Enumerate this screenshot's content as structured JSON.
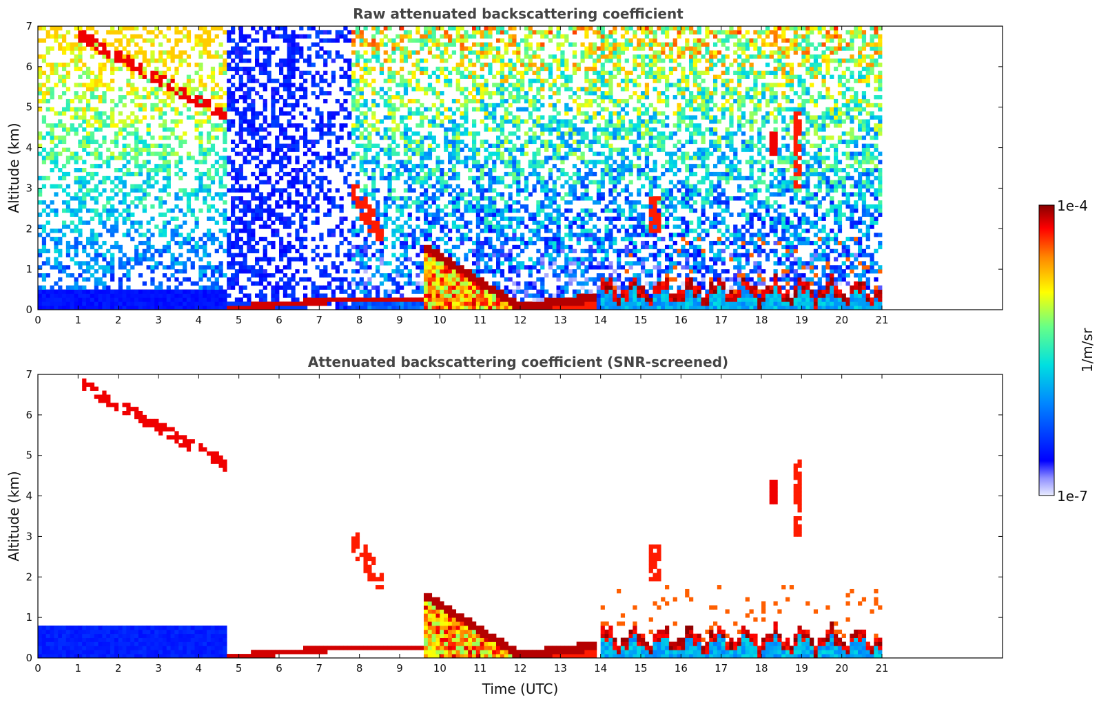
{
  "chart_data": [
    {
      "type": "heatmap",
      "title": "Raw attenuated backscattering coefficient",
      "xlabel": "",
      "ylabel": "Altitude (km)",
      "xlim": [
        0,
        24
      ],
      "ylim": [
        0,
        7
      ],
      "data_extent_hours": [
        0,
        21
      ],
      "xticks": [
        "0",
        "1",
        "2",
        "3",
        "4",
        "5",
        "6",
        "7",
        "8",
        "9",
        "10",
        "11",
        "12",
        "13",
        "14",
        "15",
        "16",
        "17",
        "18",
        "19",
        "20",
        "21"
      ],
      "yticks": [
        "0",
        "1",
        "2",
        "3",
        "4",
        "5",
        "6",
        "7"
      ],
      "features": [
        {
          "desc": "cirrus layer",
          "time_range": [
            1.0,
            4.7
          ],
          "altitude_range": [
            4.3,
            7.0
          ],
          "level": "high"
        },
        {
          "desc": "boundary layer",
          "time_range": [
            0.0,
            21.0
          ],
          "altitude_range": [
            0.0,
            0.5
          ],
          "level": "low"
        },
        {
          "desc": "elevated cloud",
          "time_range": [
            7.8,
            8.6
          ],
          "altitude_range": [
            1.7,
            3.1
          ],
          "level": "high"
        },
        {
          "desc": "descending aerosol/cloud layer",
          "time_range": [
            9.6,
            13.8
          ],
          "altitude_range": [
            0.0,
            1.6
          ],
          "level": "high"
        },
        {
          "desc": "convective cloud tops",
          "time_range": [
            14.0,
            21.0
          ],
          "altitude_range": [
            0.3,
            1.2
          ],
          "level": "high"
        },
        {
          "desc": "mid-level clouds",
          "time_range": [
            18.2,
            19.1
          ],
          "altitude_range": [
            2.5,
            4.9
          ],
          "level": "high"
        }
      ]
    },
    {
      "type": "heatmap",
      "title": "Attenuated backscattering coefficient (SNR-screened)",
      "xlabel": "Time (UTC)",
      "ylabel": "Altitude (km)",
      "xlim": [
        0,
        24
      ],
      "ylim": [
        0,
        7
      ],
      "data_extent_hours": [
        0,
        21
      ],
      "xticks": [
        "0",
        "1",
        "2",
        "3",
        "4",
        "5",
        "6",
        "7",
        "8",
        "9",
        "10",
        "11",
        "12",
        "13",
        "14",
        "15",
        "16",
        "17",
        "18",
        "19",
        "20",
        "21"
      ],
      "yticks": [
        "0",
        "1",
        "2",
        "3",
        "4",
        "5",
        "6",
        "7"
      ]
    }
  ],
  "colorbar": {
    "max_label": "1e-4",
    "min_label": "1e-7",
    "unit_label": "1/m/sr",
    "colormap": "jet"
  }
}
